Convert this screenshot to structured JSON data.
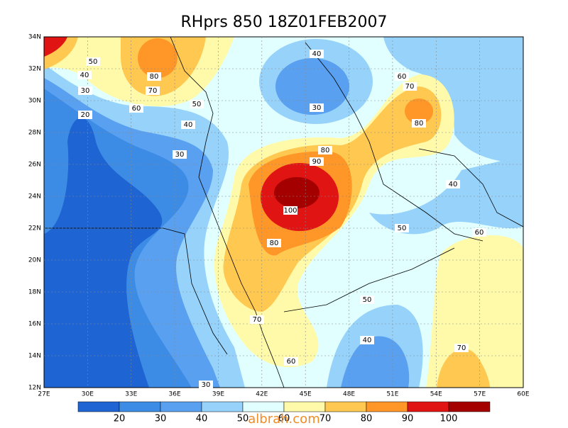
{
  "title": "RHprs 850 18Z01FEB2007",
  "x_ticks": [
    "27E",
    "30E",
    "33E",
    "36E",
    "39E",
    "42E",
    "45E",
    "48E",
    "51E",
    "54E",
    "57E",
    "60E"
  ],
  "y_ticks": [
    "12N",
    "14N",
    "16N",
    "18N",
    "20N",
    "22N",
    "24N",
    "26N",
    "28N",
    "30N",
    "32N",
    "34N"
  ],
  "contour_labels": [
    "50",
    "40",
    "30",
    "20",
    "80",
    "70",
    "60",
    "50",
    "40",
    "30",
    "40",
    "30",
    "60",
    "70",
    "80",
    "80",
    "90",
    "100",
    "80",
    "40",
    "50",
    "60",
    "70",
    "50",
    "40",
    "60",
    "70",
    "30"
  ],
  "colorbar": {
    "colors": [
      "#1e64d2",
      "#3c8ce6",
      "#5aa0f0",
      "#96d2fa",
      "#e1ffff",
      "#fffaaa",
      "#ffc850",
      "#ff9628",
      "#e11414",
      "#a50000"
    ],
    "labels": [
      20,
      30,
      40,
      50,
      60,
      70,
      80,
      90,
      100
    ]
  },
  "watermark": "albrah.com"
}
